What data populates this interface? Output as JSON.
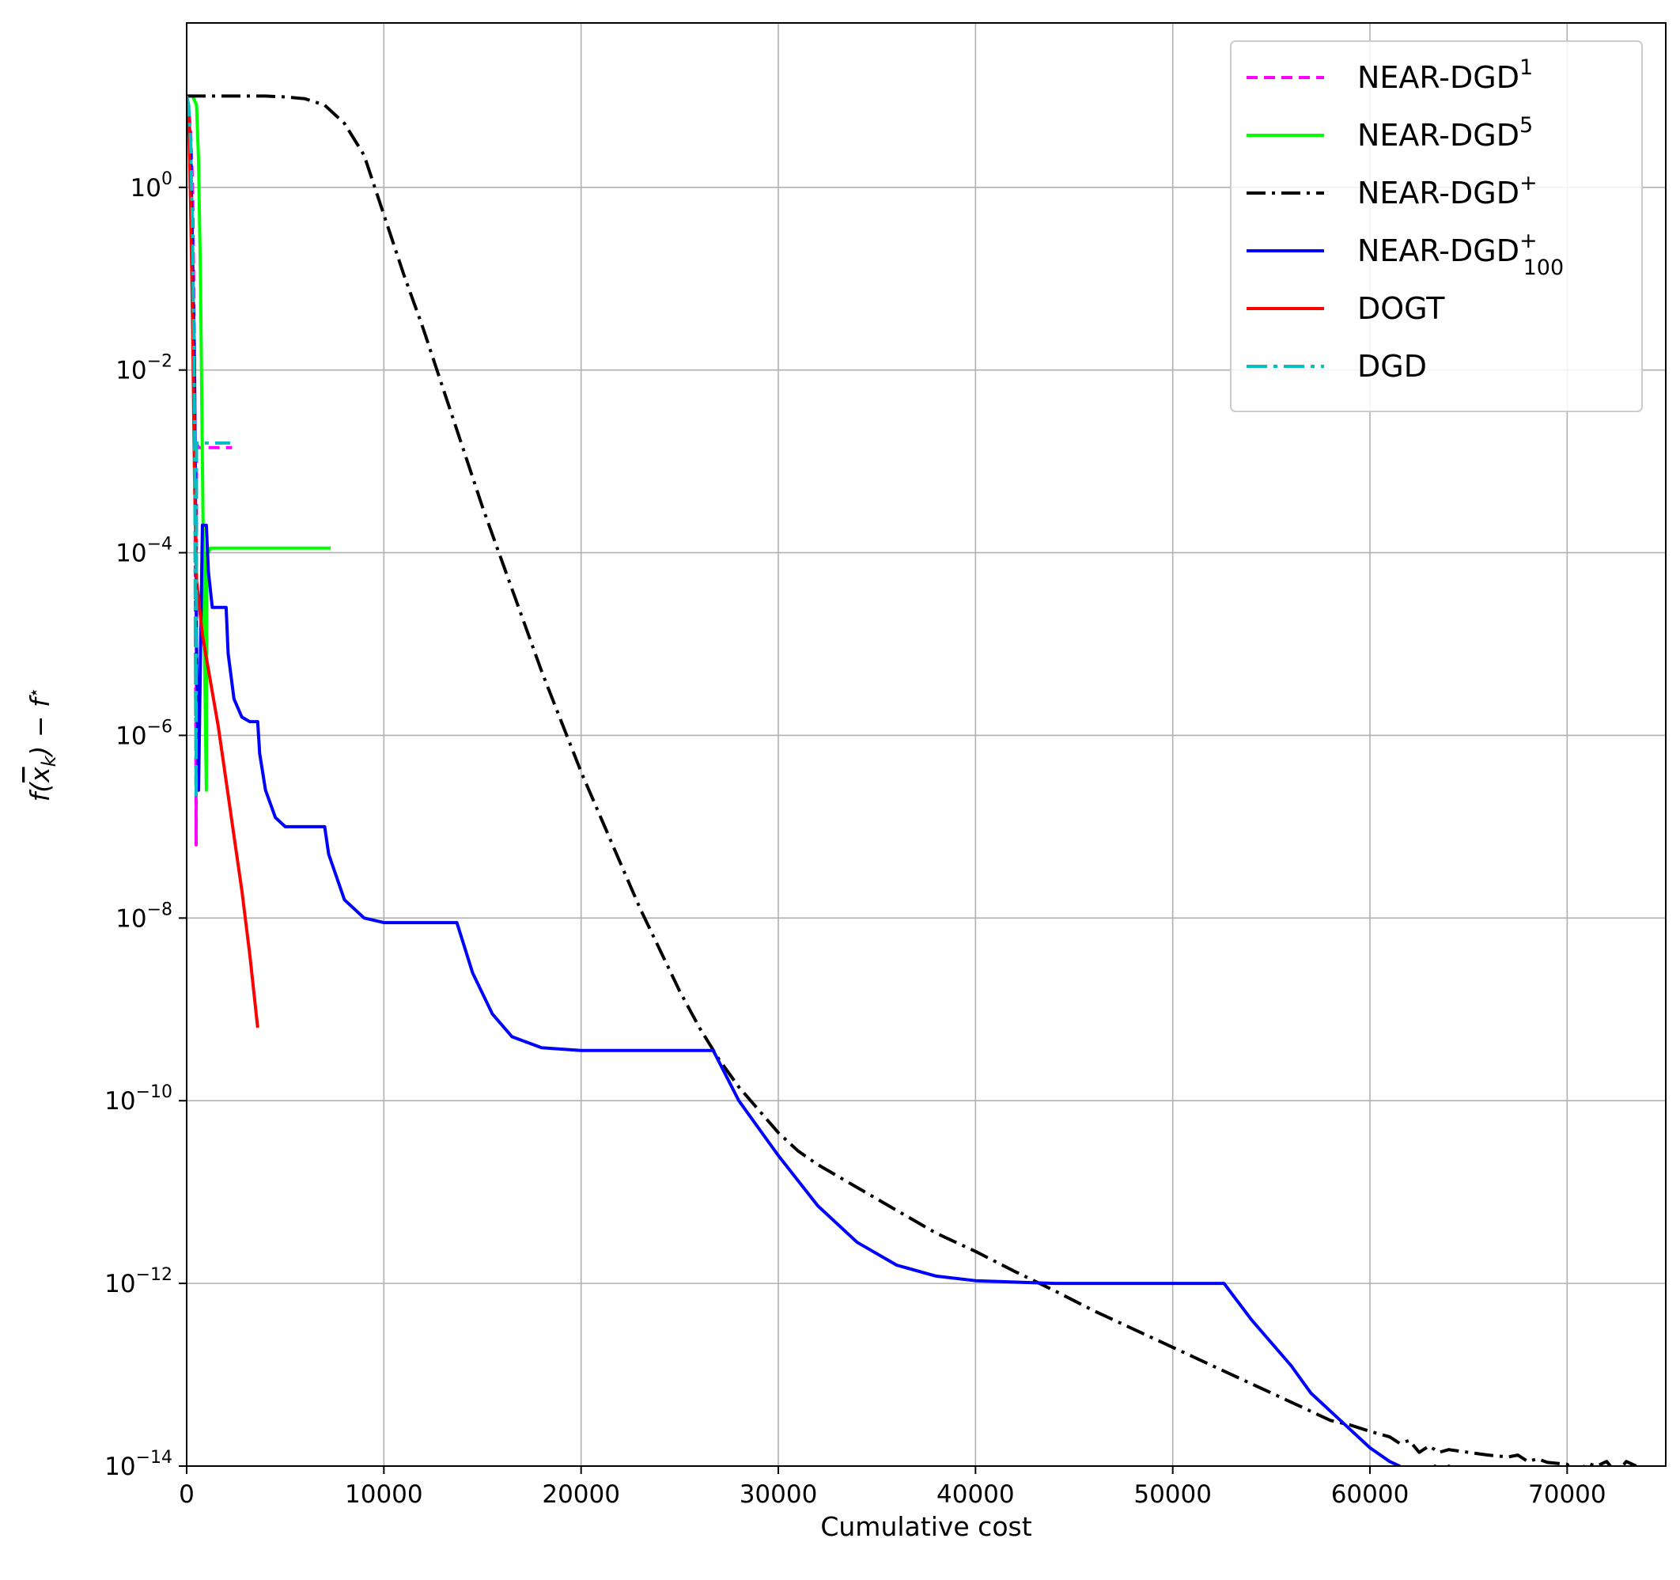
{
  "chart_data": {
    "type": "line",
    "xlabel": "Cumulative cost",
    "ylabel": "f(x̄_k) − f^⋆",
    "xscale": "linear",
    "yscale": "log",
    "xlim": [
      0,
      75000
    ],
    "ylim_log10": [
      -14,
      1.8
    ],
    "grid": true,
    "legend_position": "top-right",
    "x_ticks": [
      0,
      10000,
      20000,
      30000,
      40000,
      50000,
      60000,
      70000
    ],
    "x_tick_labels": [
      "0",
      "10000",
      "20000",
      "30000",
      "40000",
      "50000",
      "60000",
      "70000"
    ],
    "y_ticks_log10": [
      0,
      -2,
      -4,
      -6,
      -8,
      -10,
      -12,
      -14
    ],
    "y_tick_labels": [
      "0",
      "−2",
      "−4",
      "−6",
      "−8",
      "−10",
      "−12",
      "−14"
    ],
    "y_tick_base": "10",
    "series": [
      {
        "name": "NEAR-DGD",
        "sup": "1",
        "sub": "",
        "color": "#ff00ff",
        "dash": "14,8",
        "x": [
          0,
          100,
          200,
          300,
          400,
          450,
          480,
          500,
          600,
          800,
          1200,
          1800,
          2300
        ],
        "y_log10": [
          1.0,
          0.9,
          0.6,
          0.0,
          -2.0,
          -5.0,
          -7.2,
          -2.8,
          -2.85,
          -2.85,
          -2.85,
          -2.85,
          -2.85
        ]
      },
      {
        "name": "NEAR-DGD",
        "sup": "5",
        "sub": "",
        "color": "#00ff00",
        "dash": "",
        "x": [
          0,
          300,
          500,
          600,
          700,
          800,
          900,
          1000,
          1020,
          1100,
          1200,
          2000,
          4000,
          6000,
          7300
        ],
        "y_log10": [
          1.0,
          1.0,
          0.9,
          0.3,
          -1.0,
          -3.0,
          -5.0,
          -6.6,
          -4.0,
          -4.0,
          -3.95,
          -3.95,
          -3.95,
          -3.95,
          -3.95
        ]
      },
      {
        "name": "NEAR-DGD",
        "sup": "+",
        "sub": "",
        "color": "#000000",
        "dash": "24,8,4,8",
        "x": [
          0,
          2000,
          4000,
          5000,
          6000,
          7000,
          8000,
          9000,
          10000,
          11000,
          12000,
          13000,
          14000,
          15000,
          16000,
          17000,
          18000,
          19000,
          20000,
          21000,
          22000,
          23000,
          24000,
          25000,
          26000,
          27000,
          28000,
          29000,
          30000,
          31000,
          32000,
          34000,
          36000,
          38000,
          40000,
          42000,
          44000,
          46000,
          48000,
          50000,
          52000,
          54000,
          55000,
          56000,
          57000,
          58000,
          59000,
          60000,
          61000,
          61500,
          62000,
          62500,
          63000,
          63500,
          64000,
          65000,
          66000,
          67000,
          67500,
          68000,
          68500,
          69000,
          70000,
          70500,
          71000,
          71500,
          72000,
          72500,
          73000,
          73500
        ],
        "y_log10": [
          1.0,
          1.0,
          1.0,
          0.99,
          0.97,
          0.9,
          0.7,
          0.35,
          -0.3,
          -0.95,
          -1.55,
          -2.2,
          -2.85,
          -3.5,
          -4.1,
          -4.7,
          -5.3,
          -5.85,
          -6.4,
          -6.9,
          -7.4,
          -7.9,
          -8.35,
          -8.8,
          -9.2,
          -9.55,
          -9.85,
          -10.1,
          -10.35,
          -10.55,
          -10.7,
          -10.95,
          -11.2,
          -11.45,
          -11.65,
          -11.87,
          -12.08,
          -12.3,
          -12.5,
          -12.7,
          -12.9,
          -13.1,
          -13.2,
          -13.3,
          -13.4,
          -13.5,
          -13.55,
          -13.62,
          -13.68,
          -13.75,
          -13.72,
          -13.85,
          -13.78,
          -13.85,
          -13.82,
          -13.85,
          -13.88,
          -13.9,
          -13.88,
          -13.95,
          -13.92,
          -13.96,
          -13.98,
          -14.1,
          -13.97,
          -14.0,
          -13.95,
          -14.08,
          -13.95,
          -14.0
        ]
      },
      {
        "name": "NEAR-DGD",
        "sup": "+",
        "sub": "100",
        "color": "#0000ff",
        "dash": "",
        "x": [
          0,
          200,
          400,
          500,
          600,
          800,
          1000,
          1100,
          1300,
          1600,
          1800,
          2000,
          2100,
          2400,
          2800,
          3200,
          3600,
          3700,
          4000,
          4500,
          5000,
          6000,
          7000,
          7200,
          8000,
          9000,
          10000,
          12000,
          13700,
          14500,
          15500,
          16500,
          18000,
          20000,
          24000,
          26700,
          28000,
          30000,
          32000,
          34000,
          36000,
          38000,
          40000,
          44000,
          48000,
          52600,
          54000,
          56000,
          57000,
          58000,
          59000,
          60000,
          61000,
          61500,
          62000,
          62500,
          62800,
          63000,
          63300,
          63500,
          63800,
          64000,
          64300
        ],
        "y_log10": [
          1.0,
          0.5,
          -2.0,
          -5.0,
          -6.6,
          -3.7,
          -3.7,
          -4.2,
          -4.6,
          -4.6,
          -4.6,
          -4.6,
          -5.1,
          -5.6,
          -5.8,
          -5.85,
          -5.85,
          -6.2,
          -6.6,
          -6.9,
          -7.0,
          -7.0,
          -7.0,
          -7.3,
          -7.8,
          -8.0,
          -8.05,
          -8.05,
          -8.05,
          -8.6,
          -9.05,
          -9.3,
          -9.42,
          -9.45,
          -9.45,
          -9.45,
          -10.0,
          -10.6,
          -11.15,
          -11.55,
          -11.8,
          -11.92,
          -11.97,
          -12.0,
          -12.0,
          -12.0,
          -12.4,
          -12.9,
          -13.2,
          -13.4,
          -13.6,
          -13.8,
          -13.95,
          -14.0,
          -14.2,
          -14.3,
          -14.5,
          -14.15,
          -14.0,
          -14.25,
          -14.4,
          -14.0,
          -14.2
        ]
      },
      {
        "name": "DOGT",
        "sup": "",
        "sub": "",
        "color": "#ff0000",
        "dash": "",
        "x": [
          0,
          100,
          200,
          300,
          400,
          500,
          800,
          1200,
          1600,
          2000,
          2400,
          2800,
          3200,
          3600
        ],
        "y_log10": [
          1.0,
          0.8,
          -0.2,
          -1.5,
          -3.2,
          -4.3,
          -4.9,
          -5.4,
          -5.9,
          -6.5,
          -7.1,
          -7.7,
          -8.4,
          -9.2
        ]
      },
      {
        "name": "DGD",
        "sup": "",
        "sub": "",
        "color": "#00bfbf",
        "dash": "26,8,5,8",
        "x": [
          0,
          100,
          200,
          300,
          400,
          450,
          480,
          500,
          600,
          800,
          1200,
          1600,
          2200
        ],
        "y_log10": [
          1.0,
          0.9,
          0.5,
          -0.5,
          -2.5,
          -5.5,
          -6.7,
          -2.8,
          -2.8,
          -2.8,
          -2.8,
          -2.8,
          -2.8
        ]
      }
    ]
  }
}
